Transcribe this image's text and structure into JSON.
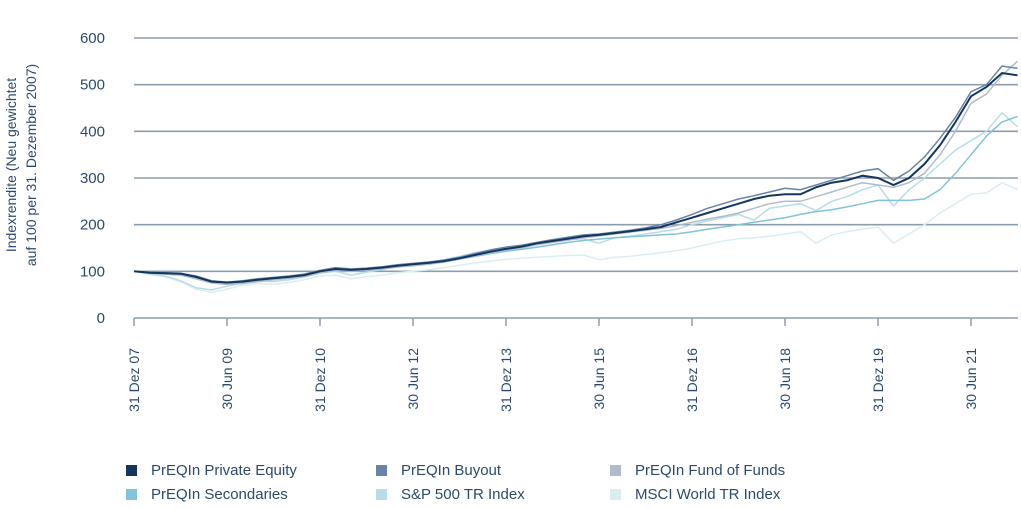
{
  "chart_data": {
    "type": "line",
    "title": "",
    "ylabel": "Indexrendite (Neu gewichtet auf 100 per 31. Dezember 2007)",
    "ylabel_lines": [
      "Indexrendite (Neu gewichtet",
      "auf 100 per 31. Dezember 2007)"
    ],
    "ylim": [
      0,
      600
    ],
    "yticks": [
      0,
      100,
      200,
      300,
      400,
      500,
      600
    ],
    "x_frequency": "quarterly",
    "x_start": "31 Dez 07",
    "x_end": "31 Mär 22",
    "xticks": [
      {
        "label": "31 Dez 07",
        "quarter_index": 0
      },
      {
        "label": "30 Jun 09",
        "quarter_index": 6
      },
      {
        "label": "31 Dez 10",
        "quarter_index": 12
      },
      {
        "label": "30 Jun 12",
        "quarter_index": 18
      },
      {
        "label": "31 Dez 13",
        "quarter_index": 24
      },
      {
        "label": "30 Jun 15",
        "quarter_index": 30
      },
      {
        "label": "31 Dez 16",
        "quarter_index": 36
      },
      {
        "label": "30 Jun 18",
        "quarter_index": 42
      },
      {
        "label": "31 Dez 19",
        "quarter_index": 48
      },
      {
        "label": "30 Jun 21",
        "quarter_index": 54
      }
    ],
    "grid": "horizontal",
    "legend_position": "bottom",
    "series": [
      {
        "name": "PrEQIn Private Equity",
        "color": "#12365f",
        "values": [
          100,
          97,
          96,
          95,
          88,
          78,
          76,
          78,
          82,
          85,
          88,
          92,
          100,
          105,
          103,
          105,
          108,
          112,
          115,
          118,
          122,
          128,
          135,
          142,
          148,
          153,
          160,
          165,
          170,
          175,
          178,
          182,
          186,
          190,
          195,
          205,
          215,
          225,
          235,
          245,
          255,
          262,
          265,
          265,
          280,
          290,
          295,
          305,
          300,
          285,
          300,
          330,
          370,
          420,
          475,
          495,
          525,
          520
        ]
      },
      {
        "name": "PrEQIn Buyout",
        "color": "#6783a6",
        "values": [
          100,
          98,
          97,
          96,
          90,
          80,
          77,
          80,
          84,
          87,
          90,
          94,
          102,
          108,
          105,
          107,
          110,
          114,
          117,
          120,
          124,
          130,
          138,
          146,
          152,
          156,
          162,
          168,
          173,
          178,
          180,
          184,
          188,
          193,
          200,
          210,
          222,
          235,
          245,
          255,
          262,
          270,
          278,
          275,
          285,
          295,
          305,
          315,
          320,
          295,
          315,
          345,
          385,
          430,
          485,
          500,
          540,
          535
        ]
      },
      {
        "name": "PrEQIn Fund of Funds",
        "color": "#b0bccb",
        "values": [
          100,
          96,
          94,
          92,
          84,
          75,
          72,
          74,
          78,
          82,
          85,
          89,
          97,
          102,
          100,
          102,
          105,
          109,
          112,
          115,
          120,
          126,
          133,
          140,
          146,
          150,
          157,
          162,
          167,
          172,
          176,
          180,
          184,
          188,
          192,
          198,
          205,
          212,
          218,
          225,
          235,
          245,
          250,
          250,
          260,
          270,
          280,
          290,
          285,
          280,
          290,
          310,
          350,
          400,
          460,
          480,
          520,
          550
        ]
      },
      {
        "name": "PrEQIn Secondaries",
        "color": "#7fc4d8",
        "values": [
          100,
          97,
          95,
          94,
          86,
          76,
          74,
          76,
          80,
          83,
          86,
          90,
          98,
          103,
          101,
          103,
          106,
          110,
          113,
          116,
          120,
          126,
          132,
          138,
          143,
          147,
          152,
          157,
          162,
          166,
          169,
          172,
          174,
          176,
          178,
          180,
          185,
          190,
          195,
          200,
          205,
          210,
          215,
          222,
          228,
          232,
          238,
          245,
          252,
          252,
          252,
          255,
          275,
          310,
          350,
          390,
          420,
          432
        ]
      },
      {
        "name": "S&P 500 TR Index",
        "color": "#b7dde8",
        "values": [
          100,
          95,
          90,
          80,
          65,
          60,
          68,
          75,
          80,
          78,
          82,
          88,
          96,
          100,
          92,
          98,
          104,
          110,
          115,
          118,
          125,
          132,
          140,
          145,
          150,
          155,
          160,
          165,
          168,
          170,
          160,
          172,
          175,
          180,
          185,
          190,
          200,
          208,
          215,
          222,
          210,
          235,
          240,
          245,
          230,
          250,
          260,
          275,
          285,
          240,
          275,
          300,
          330,
          360,
          380,
          400,
          440,
          410
        ]
      },
      {
        "name": "MSCI World TR Index",
        "color": "#dcedf2",
        "values": [
          100,
          93,
          88,
          78,
          62,
          55,
          62,
          70,
          74,
          72,
          76,
          82,
          90,
          92,
          84,
          88,
          92,
          97,
          100,
          103,
          108,
          113,
          118,
          122,
          126,
          128,
          130,
          132,
          134,
          135,
          125,
          130,
          132,
          136,
          140,
          144,
          150,
          158,
          165,
          170,
          172,
          175,
          180,
          185,
          160,
          178,
          185,
          190,
          195,
          160,
          180,
          200,
          225,
          245,
          265,
          268,
          290,
          275
        ]
      }
    ]
  }
}
